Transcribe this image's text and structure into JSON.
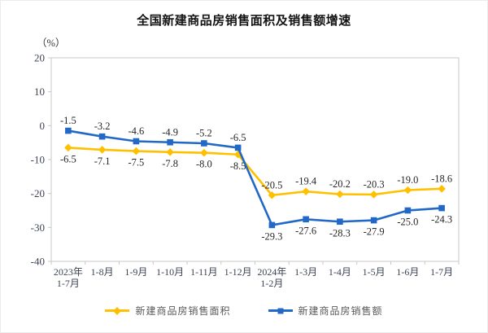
{
  "page": {
    "title": "全国新建商品房销售面积及销售额增速",
    "unit_label": "（%）"
  },
  "chart_data": {
    "type": "line",
    "categories": [
      [
        "2023年",
        "1-7月"
      ],
      "1-8月",
      "1-9月",
      "1-10月",
      "1-11月",
      "1-12月",
      [
        "2024年",
        "1-2月"
      ],
      "1-3月",
      "1-4月",
      "1-5月",
      "1-6月",
      "1-7月"
    ],
    "series": [
      {
        "name": "新建商品房销售面积",
        "color": "#FFC000",
        "marker": "diamond",
        "values": [
          -6.5,
          -7.1,
          -7.5,
          -7.8,
          -8.0,
          -8.5,
          -20.5,
          -19.4,
          -20.2,
          -20.3,
          -19.0,
          -18.6
        ]
      },
      {
        "name": "新建商品房销售额",
        "color": "#2269C7",
        "marker": "square",
        "values": [
          -1.5,
          -3.2,
          -4.6,
          -4.9,
          -5.2,
          -6.5,
          -29.3,
          -27.6,
          -28.3,
          -27.9,
          -25.0,
          -24.3
        ]
      }
    ],
    "ylim": [
      -40,
      20
    ],
    "yticks": [
      20,
      10,
      0,
      -10,
      -20,
      -30,
      -40
    ],
    "grid": false,
    "data_labels": true,
    "legend_position": "bottom",
    "xlabel": "",
    "ylabel": "（%）"
  },
  "colors": {
    "series_area": "#FFC000",
    "series_amount": "#2269C7",
    "axis_text": "#3c4454",
    "data_label_text": "#262626",
    "plot_border": "#c8c8c8",
    "legend_text": "#595959"
  }
}
